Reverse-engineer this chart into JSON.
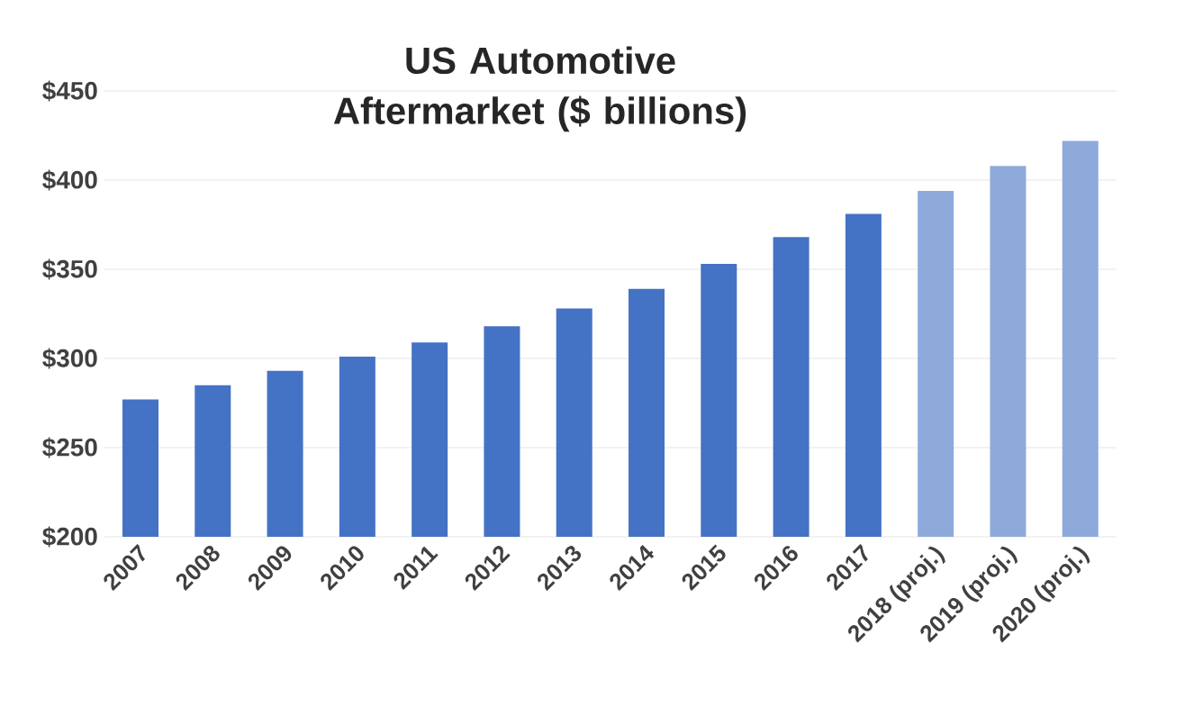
{
  "chart_data": {
    "type": "bar",
    "title": "US Automotive Aftermarket ($ billions)",
    "categories": [
      "2007",
      "2008",
      "2009",
      "2010",
      "2011",
      "2012",
      "2013",
      "2014",
      "2015",
      "2016",
      "2017",
      "2018 (proj.)",
      "2019 (proj.)",
      "2020 (proj.)"
    ],
    "values": [
      277,
      285,
      293,
      301,
      309,
      318,
      328,
      339,
      353,
      368,
      381,
      394,
      408,
      422
    ],
    "colors": [
      "#4472c4",
      "#4472c4",
      "#4472c4",
      "#4472c4",
      "#4472c4",
      "#4472c4",
      "#4472c4",
      "#4472c4",
      "#4472c4",
      "#4472c4",
      "#4472c4",
      "#8eaadb",
      "#8eaadb",
      "#8eaadb"
    ],
    "ylim": [
      200,
      450
    ],
    "yticks": [
      {
        "value": 200,
        "label": "$200"
      },
      {
        "value": 250,
        "label": "$250"
      },
      {
        "value": 300,
        "label": "$300"
      },
      {
        "value": 350,
        "label": "$350"
      },
      {
        "value": 400,
        "label": "$400"
      },
      {
        "value": 450,
        "label": "$450"
      }
    ],
    "grid": "y"
  }
}
